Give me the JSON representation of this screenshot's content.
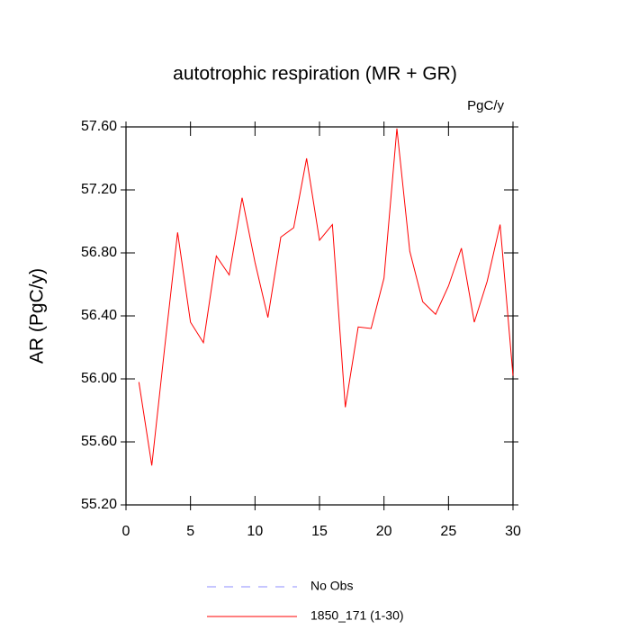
{
  "chart_data": {
    "type": "line",
    "title": "autotrophic respiration (MR + GR)",
    "units": "PgC/y",
    "y_label": "AR  (PgC/y)",
    "x": [
      1,
      2,
      3,
      4,
      5,
      6,
      7,
      8,
      9,
      10,
      11,
      12,
      13,
      14,
      15,
      16,
      17,
      18,
      19,
      20,
      21,
      22,
      23,
      24,
      25,
      26,
      27,
      28,
      29,
      30
    ],
    "series": [
      {
        "name": "1850_171 (1-30)",
        "color": "#ff0000",
        "values": [
          55.98,
          55.45,
          56.2,
          56.93,
          56.36,
          56.23,
          56.78,
          56.66,
          57.15,
          56.74,
          56.39,
          56.9,
          56.96,
          57.4,
          56.88,
          56.98,
          55.82,
          56.33,
          56.32,
          56.64,
          57.59,
          56.81,
          56.49,
          56.41,
          56.59,
          56.83,
          56.36,
          56.62,
          56.98,
          56.02
        ]
      }
    ],
    "reference": {
      "name": "No Obs",
      "color": "#8c8cff",
      "style": "dashed"
    },
    "xlim": [
      0,
      30
    ],
    "xticks": [
      0,
      5,
      10,
      15,
      20,
      25,
      30
    ],
    "ylim": [
      55.2,
      57.6
    ],
    "yticks": [
      {
        "value": 55.2,
        "label": "55.20"
      },
      {
        "value": 55.6,
        "label": "55.60"
      },
      {
        "value": 56.0,
        "label": "56.00"
      },
      {
        "value": 56.4,
        "label": "56.40"
      },
      {
        "value": 56.8,
        "label": "56.80"
      },
      {
        "value": 57.2,
        "label": "57.20"
      },
      {
        "value": 57.6,
        "label": "57.60"
      }
    ]
  }
}
